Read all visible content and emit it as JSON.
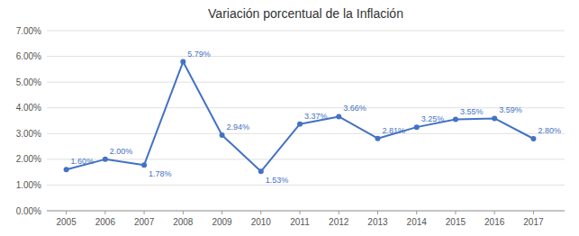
{
  "chart_data": {
    "type": "line",
    "title": "Variación porcentual de la Inflación",
    "x": [
      2005,
      2006,
      2007,
      2008,
      2009,
      2010,
      2011,
      2012,
      2013,
      2014,
      2015,
      2016,
      2017
    ],
    "values": [
      1.6,
      2.0,
      1.78,
      5.79,
      2.94,
      1.53,
      3.37,
      3.66,
      2.81,
      3.25,
      3.55,
      3.59,
      2.8
    ],
    "value_labels": [
      "1.60%",
      "2.00%",
      "1.78%",
      "5.79%",
      "2.94%",
      "1.53%",
      "3.37%",
      "3.66%",
      "2.81%",
      "3.25%",
      "3.55%",
      "3.59%",
      "2.80%"
    ],
    "color": "#4472C4",
    "marker": "circle",
    "data_labels": true,
    "grid": true,
    "xlim": [
      2004.5,
      2017.8
    ],
    "xticks": [
      2005,
      2006,
      2007,
      2008,
      2009,
      2010,
      2011,
      2012,
      2013,
      2014,
      2015,
      2016,
      2017
    ],
    "ylim": [
      0.0,
      7.0
    ],
    "yticks": [
      {
        "value": 0.0,
        "label": "0.00%"
      },
      {
        "value": 1.0,
        "label": "1.00%"
      },
      {
        "value": 2.0,
        "label": "2.00%"
      },
      {
        "value": 3.0,
        "label": "3.00%"
      },
      {
        "value": 4.0,
        "label": "4.00%"
      },
      {
        "value": 5.0,
        "label": "5.00%"
      },
      {
        "value": 6.0,
        "label": "6.00%"
      },
      {
        "value": 7.0,
        "label": "7.00%"
      }
    ]
  }
}
